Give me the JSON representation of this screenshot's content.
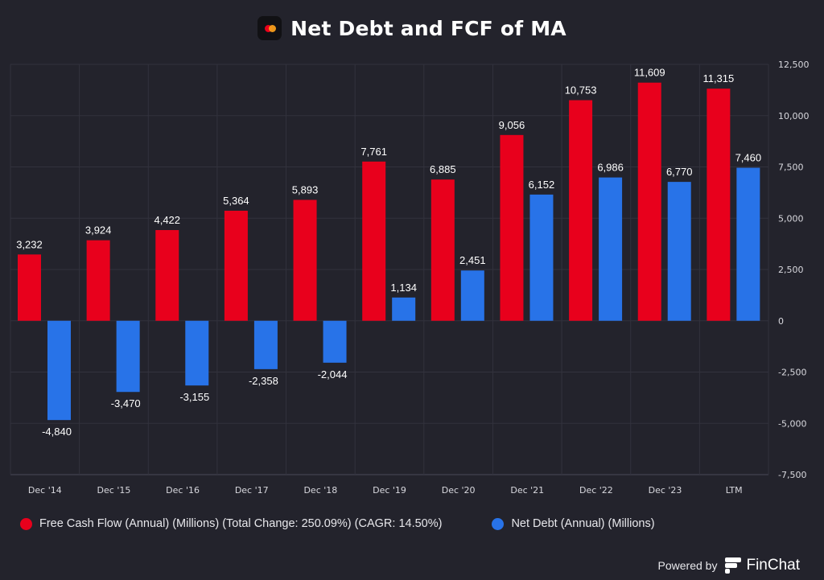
{
  "header": {
    "title": "Net Debt and FCF of MA",
    "logo_icon": "mastercard-logo-icon"
  },
  "chart_data": {
    "type": "bar",
    "title": "Net Debt and FCF of MA",
    "xlabel": "",
    "ylabel": "",
    "categories": [
      "Dec '14",
      "Dec '15",
      "Dec '16",
      "Dec '17",
      "Dec '18",
      "Dec '19",
      "Dec '20",
      "Dec '21",
      "Dec '22",
      "Dec '23",
      "LTM"
    ],
    "series": [
      {
        "name": "Free Cash Flow (Annual) (Millions) (Total Change: 250.09%) (CAGR: 14.50%)",
        "color": "#e8001c",
        "values": [
          3232,
          3924,
          4422,
          5364,
          5893,
          7761,
          6885,
          9056,
          10753,
          11609,
          11315
        ],
        "labels": [
          "3,232",
          "3,924",
          "4,422",
          "5,364",
          "5,893",
          "7,761",
          "6,885",
          "9,056",
          "10,753",
          "11,609",
          "11,315"
        ]
      },
      {
        "name": "Net Debt (Annual) (Millions)",
        "color": "#2873e8",
        "values": [
          -4840,
          -3470,
          -3155,
          -2358,
          -2044,
          1134,
          2451,
          6152,
          6986,
          6770,
          7460
        ],
        "labels": [
          "-4,840",
          "-3,470",
          "-3,155",
          "-2,358",
          "-2,044",
          "1,134",
          "2,451",
          "6,152",
          "6,986",
          "6,770",
          "7,460"
        ]
      }
    ],
    "ylim": [
      -7500,
      12500
    ],
    "yticks": [
      12500,
      10000,
      7500,
      5000,
      2500,
      0,
      -2500,
      -5000,
      -7500
    ],
    "ytick_labels": [
      "12,500",
      "10,000",
      "7,500",
      "5,000",
      "2,500",
      "0",
      "-2,500",
      "-5,000",
      "-7,500"
    ],
    "y_axis_side": "right",
    "grid": true,
    "legend_position": "bottom"
  },
  "legend": {
    "items": [
      {
        "label": "Free Cash Flow (Annual) (Millions) (Total Change: 250.09%) (CAGR: 14.50%)",
        "color": "#e8001c"
      },
      {
        "label": "Net Debt (Annual) (Millions)",
        "color": "#2873e8"
      }
    ]
  },
  "footer": {
    "powered_by": "Powered by",
    "brand": "FinChat"
  }
}
